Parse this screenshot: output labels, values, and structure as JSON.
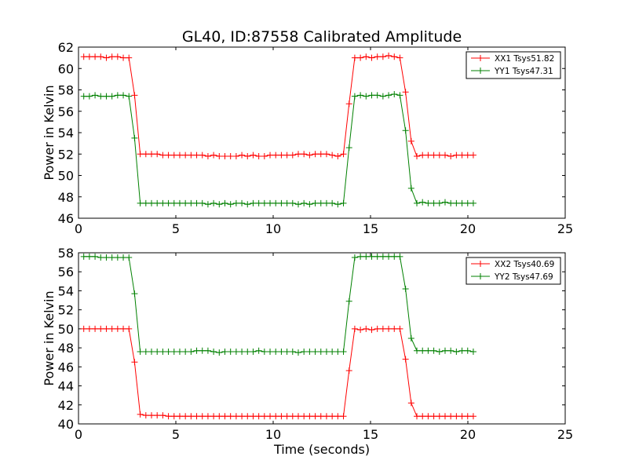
{
  "figure": {
    "title": "GL40, ID:87558 Calibrated Amplitude",
    "xlabel": "Time (seconds)"
  },
  "chart_data": [
    {
      "type": "line",
      "ylabel": "Power in Kelvin",
      "xlim": [
        0,
        25
      ],
      "ylim": [
        46,
        62
      ],
      "xticks": [
        "0",
        "5",
        "10",
        "15",
        "20",
        "25"
      ],
      "yticks": [
        "46",
        "48",
        "50",
        "52",
        "54",
        "56",
        "58",
        "60",
        "62"
      ],
      "x": [
        0.27,
        0.56,
        0.85,
        1.14,
        1.43,
        1.72,
        2.01,
        2.3,
        2.59,
        2.88,
        3.17,
        3.46,
        3.75,
        4.04,
        4.33,
        4.62,
        4.91,
        5.2,
        5.49,
        5.78,
        6.07,
        6.36,
        6.65,
        6.94,
        7.23,
        7.52,
        7.81,
        8.1,
        8.39,
        8.68,
        8.97,
        9.26,
        9.55,
        9.84,
        10.13,
        10.42,
        10.71,
        11.0,
        11.29,
        11.58,
        11.87,
        12.16,
        12.45,
        12.74,
        13.03,
        13.32,
        13.61,
        13.9,
        14.19,
        14.48,
        14.77,
        15.06,
        15.35,
        15.64,
        15.93,
        16.22,
        16.51,
        16.8,
        17.09,
        17.38,
        17.67,
        17.96,
        18.25,
        18.54,
        18.83,
        19.12,
        19.41,
        19.7,
        19.99,
        20.28
      ],
      "series": [
        {
          "name": "XX1 Tsys51.82",
          "color": "#ff0000",
          "values": [
            61.1,
            61.1,
            61.1,
            61.1,
            61.0,
            61.1,
            61.1,
            61.0,
            61.0,
            57.5,
            52.0,
            52.0,
            52.0,
            52.0,
            51.9,
            51.9,
            51.9,
            51.9,
            51.9,
            51.9,
            51.9,
            51.9,
            51.8,
            51.9,
            51.8,
            51.8,
            51.8,
            51.8,
            51.9,
            51.8,
            51.9,
            51.8,
            51.8,
            51.9,
            51.9,
            51.9,
            51.9,
            51.9,
            52.0,
            52.0,
            51.9,
            52.0,
            52.0,
            52.0,
            51.9,
            51.8,
            52.0,
            56.7,
            61.0,
            61.0,
            61.1,
            61.0,
            61.1,
            61.1,
            61.2,
            61.1,
            61.0,
            57.8,
            53.2,
            51.8,
            51.9,
            51.9,
            51.9,
            51.9,
            51.9,
            51.8,
            51.9,
            51.9,
            51.9,
            51.9
          ]
        },
        {
          "name": "YY1 Tsys47.31",
          "color": "#008000",
          "values": [
            57.4,
            57.4,
            57.5,
            57.4,
            57.4,
            57.4,
            57.5,
            57.5,
            57.4,
            53.5,
            47.4,
            47.4,
            47.4,
            47.4,
            47.4,
            47.4,
            47.4,
            47.4,
            47.4,
            47.4,
            47.4,
            47.4,
            47.3,
            47.4,
            47.3,
            47.4,
            47.3,
            47.4,
            47.4,
            47.3,
            47.4,
            47.4,
            47.4,
            47.4,
            47.4,
            47.4,
            47.4,
            47.4,
            47.3,
            47.4,
            47.3,
            47.4,
            47.4,
            47.4,
            47.4,
            47.3,
            47.4,
            52.6,
            57.4,
            57.5,
            57.4,
            57.5,
            57.5,
            57.4,
            57.5,
            57.6,
            57.5,
            54.2,
            48.8,
            47.4,
            47.5,
            47.4,
            47.4,
            47.4,
            47.5,
            47.4,
            47.4,
            47.4,
            47.4,
            47.4
          ]
        }
      ],
      "legend": "top-right",
      "grid": false
    },
    {
      "type": "line",
      "ylabel": "Power in Kelvin",
      "xlim": [
        0,
        25
      ],
      "ylim": [
        40,
        58
      ],
      "xticks": [
        "0",
        "5",
        "10",
        "15",
        "20",
        "25"
      ],
      "yticks": [
        "40",
        "42",
        "44",
        "46",
        "48",
        "50",
        "52",
        "54",
        "56",
        "58"
      ],
      "x": [
        0.27,
        0.56,
        0.85,
        1.14,
        1.43,
        1.72,
        2.01,
        2.3,
        2.59,
        2.88,
        3.17,
        3.46,
        3.75,
        4.04,
        4.33,
        4.62,
        4.91,
        5.2,
        5.49,
        5.78,
        6.07,
        6.36,
        6.65,
        6.94,
        7.23,
        7.52,
        7.81,
        8.1,
        8.39,
        8.68,
        8.97,
        9.26,
        9.55,
        9.84,
        10.13,
        10.42,
        10.71,
        11.0,
        11.29,
        11.58,
        11.87,
        12.16,
        12.45,
        12.74,
        13.03,
        13.32,
        13.61,
        13.9,
        14.19,
        14.48,
        14.77,
        15.06,
        15.35,
        15.64,
        15.93,
        16.22,
        16.51,
        16.8,
        17.09,
        17.38,
        17.67,
        17.96,
        18.25,
        18.54,
        18.83,
        19.12,
        19.41,
        19.7,
        19.99,
        20.28
      ],
      "series": [
        {
          "name": "XX2 Tsys40.69",
          "color": "#ff0000",
          "values": [
            50.0,
            50.0,
            50.0,
            50.0,
            50.0,
            50.0,
            50.0,
            50.0,
            50.0,
            46.5,
            41.0,
            40.9,
            40.9,
            40.9,
            40.9,
            40.8,
            40.8,
            40.8,
            40.8,
            40.8,
            40.8,
            40.8,
            40.8,
            40.8,
            40.8,
            40.8,
            40.8,
            40.8,
            40.8,
            40.8,
            40.8,
            40.8,
            40.8,
            40.8,
            40.8,
            40.8,
            40.8,
            40.8,
            40.8,
            40.8,
            40.8,
            40.8,
            40.8,
            40.8,
            40.8,
            40.8,
            40.8,
            45.6,
            50.0,
            49.9,
            50.0,
            49.9,
            50.0,
            50.0,
            50.0,
            50.0,
            50.0,
            46.8,
            42.2,
            40.8,
            40.8,
            40.8,
            40.8,
            40.8,
            40.8,
            40.8,
            40.8,
            40.8,
            40.8,
            40.8
          ]
        },
        {
          "name": "YY2 Tsys47.69",
          "color": "#008000",
          "values": [
            57.6,
            57.6,
            57.6,
            57.5,
            57.5,
            57.5,
            57.5,
            57.5,
            57.5,
            53.7,
            47.6,
            47.6,
            47.6,
            47.6,
            47.6,
            47.6,
            47.6,
            47.6,
            47.6,
            47.6,
            47.7,
            47.7,
            47.7,
            47.6,
            47.5,
            47.6,
            47.6,
            47.6,
            47.6,
            47.6,
            47.6,
            47.7,
            47.6,
            47.6,
            47.6,
            47.6,
            47.6,
            47.6,
            47.5,
            47.6,
            47.6,
            47.6,
            47.6,
            47.6,
            47.6,
            47.6,
            47.6,
            52.9,
            57.5,
            57.6,
            57.6,
            57.6,
            57.6,
            57.6,
            57.6,
            57.6,
            57.6,
            54.2,
            49.0,
            47.7,
            47.7,
            47.7,
            47.7,
            47.6,
            47.7,
            47.7,
            47.6,
            47.7,
            47.7,
            47.6
          ]
        }
      ],
      "legend": "top-right",
      "grid": false
    }
  ]
}
